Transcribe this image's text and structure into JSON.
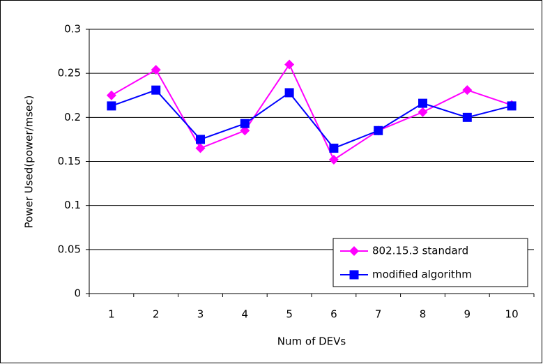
{
  "chart_data": {
    "type": "line",
    "x_label": "Num of DEVs",
    "y_label": "Power Used(power/msec)",
    "categories": [
      "1",
      "2",
      "3",
      "4",
      "5",
      "6",
      "7",
      "8",
      "9",
      "10"
    ],
    "series": [
      {
        "name": "802.15.3 standard",
        "color": "#ff00ff",
        "marker": "diamond",
        "values": [
          0.225,
          0.254,
          0.165,
          0.185,
          0.26,
          0.152,
          0.185,
          0.206,
          0.231,
          0.214
        ]
      },
      {
        "name": "modified algorithm",
        "color": "#0000ff",
        "marker": "square",
        "values": [
          0.213,
          0.231,
          0.175,
          0.193,
          0.228,
          0.165,
          0.185,
          0.216,
          0.2,
          0.213
        ]
      }
    ],
    "ylim": [
      0,
      0.3
    ],
    "yticks": [
      0,
      0.05,
      0.1,
      0.15,
      0.2,
      0.25,
      0.3
    ],
    "grid": true,
    "legend": "lower right"
  }
}
